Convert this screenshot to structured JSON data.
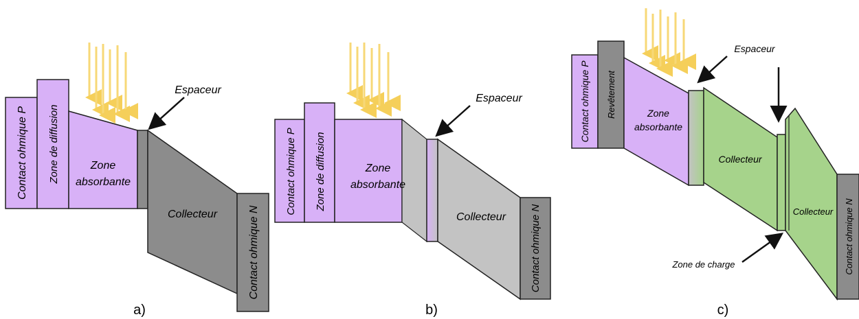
{
  "colors": {
    "violet": "#d8b1f7",
    "grey_dark": "#8c8c8c",
    "grey_light": "#c3c3c3",
    "green": "#a6d38b",
    "light_arrow": "#f7d877",
    "outline": "#222222"
  },
  "panel_a": {
    "caption": "a)",
    "contact_p": "Contact ohmique P",
    "diffusion": "Zone de diffusion",
    "absorbant_line1": "Zone",
    "absorbant_line2": "absorbante",
    "spacer": "Espaceur",
    "collector": "Collecteur",
    "contact_n": "Contact ohmique N"
  },
  "panel_b": {
    "caption": "b)",
    "contact_p": "Contact ohmique P",
    "diffusion": "Zone de diffusion",
    "absorbant_line1": "Zone",
    "absorbant_line2": "absorbante",
    "spacer": "Espaceur",
    "collector": "Collecteur",
    "contact_n": "Contact ohmique N"
  },
  "panel_c": {
    "caption": "c)",
    "contact_p": "Contact ohmique P",
    "coating": "Revêtement",
    "absorbant_line1": "Zone",
    "absorbant_line2": "absorbante",
    "spacer": "Espaceur",
    "collector1": "Collecteur",
    "charge_zone": "Zone de charge",
    "collector2": "Collecteur",
    "contact_n": "Contact ohmique N"
  }
}
